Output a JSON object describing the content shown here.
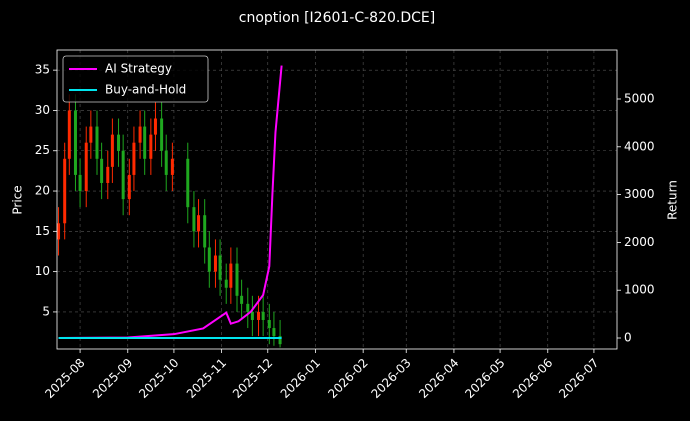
{
  "chart_data": {
    "type": "candlestick",
    "title": "cnoption [I2601-C-820.DCE]",
    "ylabel": "Price",
    "y2label": "Return",
    "up_color": "#ff2a00",
    "down_color": "#1fa81f",
    "x": [
      "2025-07-18",
      "2025-07-22",
      "2025-07-25",
      "2025-07-29",
      "2025-08-01",
      "2025-08-05",
      "2025-08-08",
      "2025-08-12",
      "2025-08-15",
      "2025-08-19",
      "2025-08-22",
      "2025-08-26",
      "2025-08-29",
      "2025-09-02",
      "2025-09-05",
      "2025-09-09",
      "2025-09-12",
      "2025-09-16",
      "2025-09-19",
      "2025-09-23",
      "2025-09-26",
      "2025-09-30",
      "2025-10-10",
      "2025-10-14",
      "2025-10-17",
      "2025-10-21",
      "2025-10-24",
      "2025-10-28",
      "2025-10-31",
      "2025-11-04",
      "2025-11-07",
      "2025-11-11",
      "2025-11-14",
      "2025-11-18",
      "2025-11-21",
      "2025-11-25",
      "2025-11-28",
      "2025-12-02",
      "2025-12-05",
      "2025-12-09"
    ],
    "open": [
      14,
      16,
      24,
      30,
      22,
      20,
      26,
      28,
      24,
      21,
      23,
      27,
      25,
      19,
      22,
      26,
      28,
      24,
      27,
      29,
      25,
      22,
      24,
      18,
      15,
      17,
      13,
      10,
      12,
      9,
      8,
      11,
      7,
      6,
      5,
      4,
      5,
      4,
      3,
      2
    ],
    "high": [
      18,
      26,
      32,
      32,
      24,
      28,
      30,
      30,
      26,
      25,
      29,
      29,
      27,
      24,
      28,
      30,
      30,
      29,
      31,
      31,
      27,
      26,
      26,
      20,
      19,
      19,
      15,
      14,
      14,
      11,
      13,
      13,
      9,
      8,
      7,
      7,
      7,
      6,
      5,
      4
    ],
    "low": [
      12,
      14,
      22,
      20,
      18,
      18,
      24,
      22,
      19,
      19,
      21,
      23,
      17,
      17,
      20,
      24,
      22,
      22,
      25,
      23,
      20,
      20,
      16,
      13,
      13,
      11,
      8,
      8,
      7,
      6,
      6,
      5,
      4,
      3,
      2,
      2,
      2,
      1,
      0.8,
      0.6
    ],
    "close": [
      16,
      24,
      30,
      22,
      20,
      26,
      28,
      24,
      21,
      23,
      27,
      25,
      19,
      22,
      26,
      28,
      24,
      27,
      29,
      25,
      22,
      24,
      18,
      15,
      17,
      13,
      10,
      12,
      9,
      8,
      11,
      7,
      6,
      5,
      4,
      5,
      4,
      3,
      2,
      1
    ],
    "series": [
      {
        "name": "AI Strategy",
        "color": "#ff00ff",
        "axis": "y2",
        "x": [
          "2025-07-18",
          "2025-09-01",
          "2025-10-01",
          "2025-10-20",
          "2025-11-04",
          "2025-11-07",
          "2025-11-12",
          "2025-11-20",
          "2025-11-28",
          "2025-12-02",
          "2025-12-04",
          "2025-12-06",
          "2025-12-08",
          "2025-12-10"
        ],
        "values": [
          0,
          10,
          80,
          200,
          530,
          300,
          350,
          550,
          900,
          1500,
          3000,
          4300,
          5000,
          5700
        ]
      },
      {
        "name": "Buy-and-Hold",
        "color": "#00e5ee",
        "axis": "y2",
        "x": [
          "2025-07-18",
          "2025-12-10"
        ],
        "values": [
          0,
          0
        ]
      }
    ],
    "xlim": [
      "2025-07-17",
      "2026-07-16"
    ],
    "xticks": [
      {
        "value": "2025-08-01",
        "label": "2025-08"
      },
      {
        "value": "2025-09-01",
        "label": "2025-09"
      },
      {
        "value": "2025-10-01",
        "label": "2025-10"
      },
      {
        "value": "2025-11-01",
        "label": "2025-11"
      },
      {
        "value": "2025-12-01",
        "label": "2025-12"
      },
      {
        "value": "2026-01-01",
        "label": "2026-01"
      },
      {
        "value": "2026-02-01",
        "label": "2026-02"
      },
      {
        "value": "2026-03-01",
        "label": "2026-03"
      },
      {
        "value": "2026-04-01",
        "label": "2026-04"
      },
      {
        "value": "2026-05-01",
        "label": "2026-05"
      },
      {
        "value": "2026-06-01",
        "label": "2026-06"
      },
      {
        "value": "2026-07-01",
        "label": "2026-07"
      }
    ],
    "ylim": [
      0.4,
      37.5
    ],
    "yticks": [
      5,
      10,
      15,
      20,
      25,
      30,
      35
    ],
    "y2lim": [
      -230,
      6025
    ],
    "y2ticks": [
      0,
      1000,
      2000,
      3000,
      4000,
      5000
    ],
    "grid": true,
    "legend": "upper-left"
  }
}
